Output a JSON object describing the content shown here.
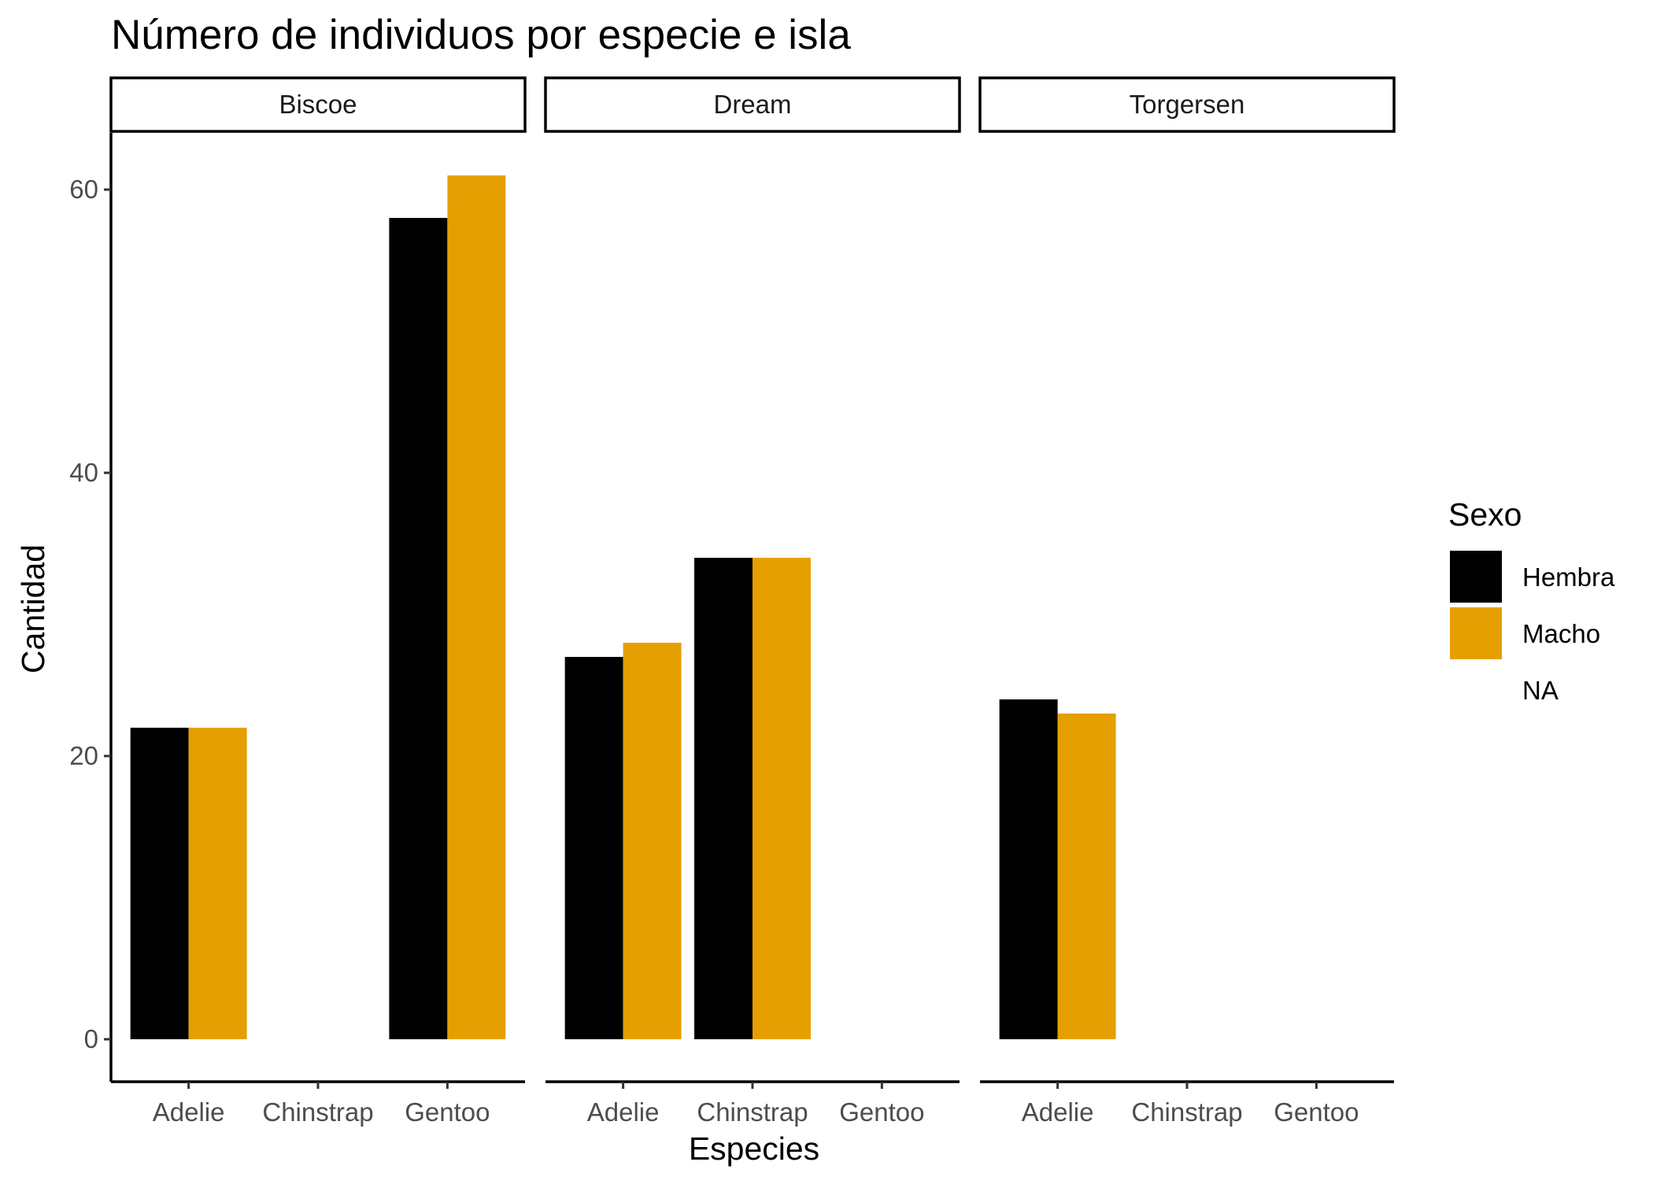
{
  "chart_data": {
    "type": "bar",
    "title": "Número de individuos por especie e isla",
    "xlabel": "Especies",
    "ylabel": "Cantidad",
    "ylim": [
      -3,
      64
    ],
    "yticks": [
      0,
      20,
      40,
      60
    ],
    "grid": false,
    "legend": {
      "title": "Sexo",
      "placement": "right",
      "entries": [
        {
          "name": "Hembra",
          "color": "#000000"
        },
        {
          "name": "Macho",
          "color": "#E69F00"
        },
        {
          "name": "NA",
          "color": "#ffffff"
        }
      ]
    },
    "categories": [
      "Adelie",
      "Chinstrap",
      "Gentoo"
    ],
    "facets": [
      {
        "name": "Biscoe",
        "bars": [
          {
            "species": "Adelie",
            "sex": "Hembra",
            "value": 22
          },
          {
            "species": "Adelie",
            "sex": "Macho",
            "value": 22
          },
          {
            "species": "Gentoo",
            "sex": "Hembra",
            "value": 58
          },
          {
            "species": "Gentoo",
            "sex": "Macho",
            "value": 61
          }
        ]
      },
      {
        "name": "Dream",
        "bars": [
          {
            "species": "Adelie",
            "sex": "Hembra",
            "value": 27
          },
          {
            "species": "Adelie",
            "sex": "Macho",
            "value": 28
          },
          {
            "species": "Chinstrap",
            "sex": "Hembra",
            "value": 34
          },
          {
            "species": "Chinstrap",
            "sex": "Macho",
            "value": 34
          }
        ]
      },
      {
        "name": "Torgersen",
        "bars": [
          {
            "species": "Adelie",
            "sex": "Hembra",
            "value": 24
          },
          {
            "species": "Adelie",
            "sex": "Macho",
            "value": 23
          }
        ]
      }
    ]
  }
}
